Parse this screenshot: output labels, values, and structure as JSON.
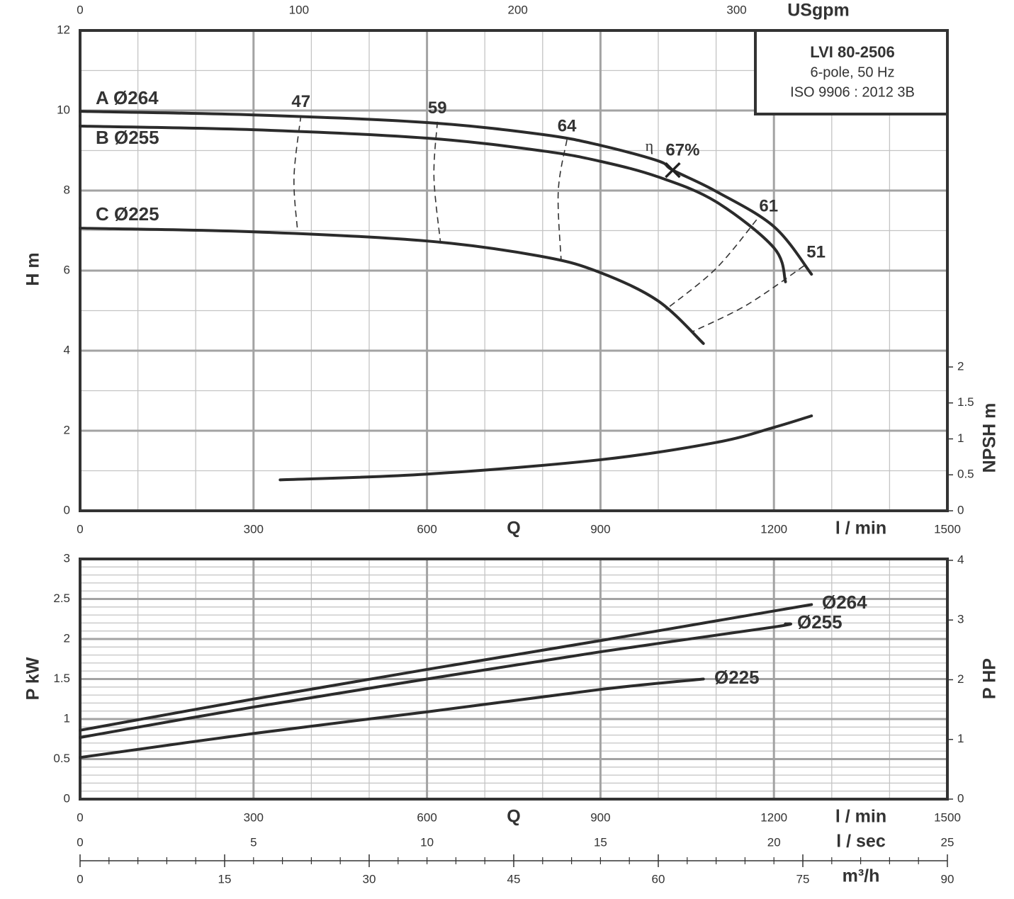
{
  "chart_data": [
    {
      "type": "line",
      "info_box": [
        "LVI 80-2506",
        "6-pole, 50 Hz",
        "ISO 9906 : 2012 3B"
      ],
      "xlabel": "Q",
      "xunit_label": "l / min",
      "ylabel": "H m",
      "y2label": "NPSH m",
      "x2label": "USgpm",
      "xlim": [
        0,
        1500
      ],
      "xticks": [
        0,
        300,
        600,
        900,
        1200,
        1500
      ],
      "xminor": [
        100,
        200,
        400,
        500,
        700,
        800,
        1000,
        1100,
        1300,
        1400
      ],
      "x2lim": [
        0,
        396.3
      ],
      "x2ticks": [
        0,
        100,
        200,
        300
      ],
      "ylim": [
        0,
        12
      ],
      "yticks": [
        0,
        2,
        4,
        6,
        8,
        10,
        12
      ],
      "yminor": [
        1,
        3,
        5,
        7,
        9,
        11
      ],
      "y2lim": [
        0,
        6.68
      ],
      "y2ticks": [
        0,
        0.5,
        1,
        1.5,
        2
      ],
      "grid": true,
      "series": [
        {
          "name": "A Ø264",
          "color": "#2b2b2b",
          "x": [
            0,
            300,
            600,
            800,
            900,
            1000,
            1025,
            1100,
            1200,
            1265
          ],
          "values": [
            9.98,
            9.89,
            9.7,
            9.4,
            9.13,
            8.74,
            8.51,
            7.98,
            7.1,
            5.91
          ]
        },
        {
          "name": "B Ø255",
          "color": "#2b2b2b",
          "x": [
            0,
            300,
            600,
            800,
            900,
            1000,
            1100,
            1200,
            1220
          ],
          "values": [
            9.61,
            9.52,
            9.31,
            8.99,
            8.73,
            8.34,
            7.72,
            6.57,
            5.72
          ]
        },
        {
          "name": "C Ø225",
          "color": "#2b2b2b",
          "x": [
            0,
            300,
            600,
            800,
            900,
            1000,
            1078
          ],
          "values": [
            7.06,
            6.97,
            6.74,
            6.35,
            5.95,
            5.24,
            4.18
          ]
        },
        {
          "color": "#2b2b2b",
          "axis": "y2",
          "x": [
            346,
            600,
            900,
            1100,
            1200,
            1265
          ],
          "values": [
            0.43,
            0.51,
            0.71,
            0.95,
            1.16,
            1.32
          ]
        }
      ],
      "efficiency_lines": [
        {
          "value": 47,
          "x": [
            382,
            370,
            376
          ],
          "y": [
            9.88,
            8.34,
            7.01
          ]
        },
        {
          "value": 59,
          "x": [
            618,
            612,
            623
          ],
          "y": [
            9.72,
            8.34,
            6.74
          ]
        },
        {
          "value": 64,
          "x": [
            842,
            827,
            832
          ],
          "y": [
            9.27,
            7.98,
            6.25
          ]
        },
        {
          "value": 61,
          "x": [
            1170,
            1099,
            1013
          ],
          "y": [
            7.27,
            6.04,
            5.03
          ]
        },
        {
          "value": 51,
          "x": [
            1252,
            1154,
            1060
          ],
          "y": [
            6.12,
            5.15,
            4.48
          ]
        }
      ],
      "bep": {
        "x": 1025,
        "y": 8.51,
        "symbol": "η",
        "efficiency": {
          "value": 67,
          "label": "67%"
        }
      }
    },
    {
      "type": "line",
      "xlabel": "Q",
      "xunit_label": "l / min",
      "ylabel": "P kW",
      "y2label": "P HP",
      "xlim": [
        0,
        1500
      ],
      "xticks": [
        0,
        300,
        600,
        900,
        1200,
        1500
      ],
      "xminor": [
        100,
        200,
        400,
        500,
        700,
        800,
        1000,
        1100,
        1300,
        1400
      ],
      "ylim": [
        0,
        3
      ],
      "yticks": [
        0,
        0.5,
        1,
        1.5,
        2,
        2.5,
        3
      ],
      "yminor": [
        0.1,
        0.2,
        0.3,
        0.4,
        0.6,
        0.7,
        0.8,
        0.9,
        1.1,
        1.2,
        1.3,
        1.4,
        1.6,
        1.7,
        1.8,
        1.9,
        2.1,
        2.2,
        2.3,
        2.4,
        2.6,
        2.7,
        2.8,
        2.9
      ],
      "y2lim": [
        0,
        4.023
      ],
      "y2ticks": [
        0,
        1,
        2,
        3,
        4
      ],
      "grid": true,
      "series": [
        {
          "name": "Ø264",
          "color": "#2b2b2b",
          "x": [
            0,
            300,
            600,
            900,
            1200,
            1265
          ],
          "values": [
            0.86,
            1.25,
            1.62,
            1.98,
            2.35,
            2.43
          ]
        },
        {
          "name": "Ø255",
          "color": "#2b2b2b",
          "x": [
            0,
            300,
            600,
            900,
            1200,
            1220
          ],
          "values": [
            0.77,
            1.15,
            1.5,
            1.84,
            2.15,
            2.19
          ]
        },
        {
          "name": "Ø225",
          "color": "#2b2b2b",
          "x": [
            0,
            300,
            600,
            900,
            1078
          ],
          "values": [
            0.52,
            0.82,
            1.09,
            1.37,
            1.5
          ]
        }
      ],
      "extra_axes": [
        {
          "label": "l / sec",
          "lim": [
            0,
            25
          ],
          "ticks": [
            0,
            5,
            10,
            15,
            20,
            25
          ]
        },
        {
          "label": "m³/h",
          "lim": [
            0,
            90
          ],
          "ticks": [
            0,
            15,
            30,
            45,
            60,
            75,
            90
          ],
          "minor": [
            3,
            6,
            9,
            12,
            18,
            21,
            24,
            27,
            33,
            36,
            39,
            42,
            48,
            51,
            54,
            57,
            63,
            66,
            69,
            72,
            78,
            81,
            84,
            87
          ]
        }
      ]
    }
  ]
}
